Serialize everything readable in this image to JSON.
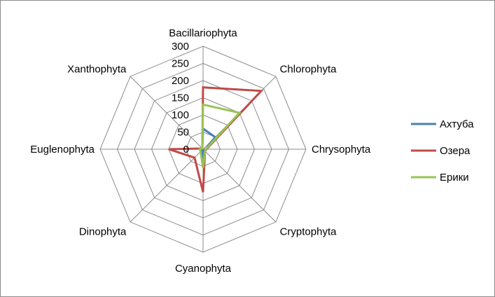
{
  "chart_data": {
    "type": "radar",
    "title": "",
    "categories": [
      "Bacillariophyta",
      "Chlorophyta",
      "Chrysophyta",
      "Cryptophyta",
      "Cyanophyta",
      "Dinophyta",
      "Euglenophyta",
      "Xanthophyta"
    ],
    "r_ticks": [
      0,
      50,
      100,
      150,
      200,
      250,
      300
    ],
    "rlim": [
      0,
      300
    ],
    "grid": true,
    "legend_position": "right",
    "series": [
      {
        "name": "Ахтуба",
        "color": "#4a7ebb",
        "values": [
          60,
          50,
          8,
          3,
          25,
          5,
          10,
          3
        ]
      },
      {
        "name": "Озера",
        "color": "#be4b48",
        "values": [
          180,
          240,
          10,
          8,
          125,
          35,
          100,
          3
        ]
      },
      {
        "name": "Ерики",
        "color": "#98c454",
        "values": [
          130,
          150,
          8,
          8,
          55,
          10,
          10,
          3
        ]
      }
    ]
  }
}
